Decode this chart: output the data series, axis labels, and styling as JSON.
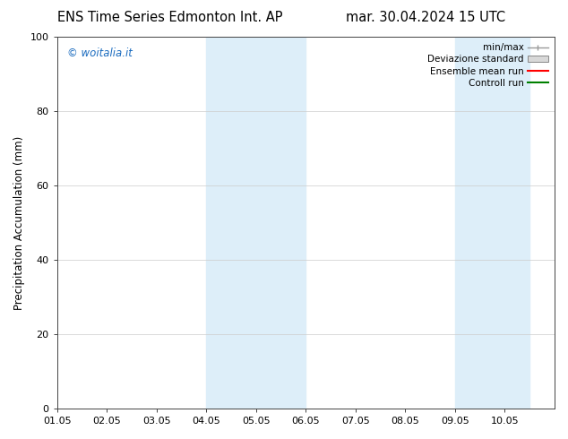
{
  "title_left": "ENS Time Series Edmonton Int. AP",
  "title_right": "mar. 30.04.2024 15 UTC",
  "ylabel": "Precipitation Accumulation (mm)",
  "ylim": [
    0,
    100
  ],
  "yticks": [
    0,
    20,
    40,
    60,
    80,
    100
  ],
  "xtick_labels": [
    "01.05",
    "02.05",
    "03.05",
    "04.05",
    "05.05",
    "06.05",
    "07.05",
    "08.05",
    "09.05",
    "10.05"
  ],
  "n_days": 10,
  "xlim": [
    0,
    10
  ],
  "background_color": "#ffffff",
  "plot_bg_color": "#ffffff",
  "shaded_regions": [
    {
      "x_start": 3.0,
      "x_end": 5.0,
      "color": "#ddeef9"
    },
    {
      "x_start": 8.0,
      "x_end": 9.5,
      "color": "#ddeef9"
    }
  ],
  "watermark_text": "© woitalia.it",
  "watermark_color": "#1a6bbf",
  "legend_items": [
    {
      "label": "min/max",
      "color": "#aaaaaa",
      "style": "minmax"
    },
    {
      "label": "Deviazione standard",
      "color": "#cccccc",
      "style": "stddev"
    },
    {
      "label": "Ensemble mean run",
      "color": "#ff0000",
      "style": "line"
    },
    {
      "label": "Controll run",
      "color": "#008000",
      "style": "line"
    }
  ],
  "title_fontsize": 10.5,
  "tick_fontsize": 8,
  "ylabel_fontsize": 8.5,
  "legend_fontsize": 7.5
}
